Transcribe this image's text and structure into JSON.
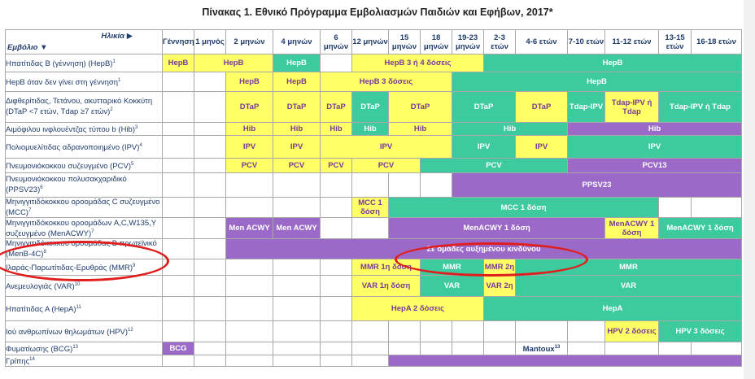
{
  "title": "Πίνακας 1. Εθνικό Πρόγραμμα Εμβολιασμών Παιδιών και Εφήβων, 2017*",
  "header": {
    "age_label": "Ηλικία ▶",
    "vaccine_label": "Εμβόλιο ▼",
    "ages": [
      "Γέννηση",
      "1 μηνός",
      "2 μηνών",
      "4 μηνών",
      "6 μηνών",
      "12 μηνών",
      "15 μηνών",
      "18 μηνών",
      "19-23 μηνών",
      "2-3 ετών",
      "4-6 ετών",
      "7-10 ετών",
      "11-12 ετών",
      "13-15 ετών",
      "16-18 ετών"
    ]
  },
  "colors": {
    "yellow": "#ffff66",
    "green": "#3cca9e",
    "purple": "#9b6ac8"
  },
  "rows": [
    {
      "name": "Ηπατίτιδας Β (γέννηση) (HepB)",
      "sup": "1",
      "h": 22,
      "cells": [
        {
          "c": "y",
          "t": "HepB"
        },
        {
          "c": "y",
          "s": 2,
          "t": "HepB"
        },
        {
          "c": "g",
          "t": "HepB"
        },
        {
          "c": "w"
        },
        {
          "c": "y",
          "s": 4,
          "t": "HepB 3 ή 4 δόσεις"
        },
        {
          "c": "g",
          "s": 6,
          "t": "HepB"
        }
      ]
    },
    {
      "name": "HepB όταν δεν γίνει στη γέννηση",
      "sup": "1",
      "h": 24,
      "cells": [
        {
          "c": "w"
        },
        {
          "c": "w"
        },
        {
          "c": "y",
          "t": "HepB"
        },
        {
          "c": "y",
          "t": "HepB"
        },
        {
          "c": "y",
          "s": 4,
          "t": "HepB 3 δόσεις"
        },
        {
          "c": "g",
          "s": 7,
          "t": "HepB"
        }
      ]
    },
    {
      "name": "Διφθερίτιδας, Τετάνου, ακυτταρικό Κοκκύτη (DTaP <7 ετών, Tdap ≥7 ετών)",
      "sup": "2",
      "h": 38,
      "cells": [
        {
          "c": "w"
        },
        {
          "c": "w"
        },
        {
          "c": "y",
          "t": "DTaP"
        },
        {
          "c": "y",
          "t": "DTaP"
        },
        {
          "c": "y",
          "t": "DTaP"
        },
        {
          "c": "g",
          "t": "DTaP"
        },
        {
          "c": "y",
          "s": 2,
          "t": "DTaP"
        },
        {
          "c": "g",
          "s": 2,
          "t": "DTaP"
        },
        {
          "c": "y",
          "t": "DTaP"
        },
        {
          "c": "g",
          "t": "Tdap-IPV"
        },
        {
          "c": "y",
          "t": "Tdap-IPV ή Tdap"
        },
        {
          "c": "g",
          "s": 2,
          "t": "Tdap-IPV ή Tdap"
        }
      ]
    },
    {
      "name": "Αιμόφιλου ινφλουέντζας τύπου b (Hib)",
      "sup": "3",
      "h": 16,
      "cells": [
        {
          "c": "w"
        },
        {
          "c": "w"
        },
        {
          "c": "y",
          "t": "Hib"
        },
        {
          "c": "y",
          "t": "Hib"
        },
        {
          "c": "y",
          "t": "Hib"
        },
        {
          "c": "g",
          "t": "Hib"
        },
        {
          "c": "y",
          "s": 2,
          "t": "Hib"
        },
        {
          "c": "g",
          "s": 3,
          "t": "Hib"
        },
        {
          "c": "p",
          "s": 4,
          "t": "Hib"
        }
      ]
    },
    {
      "name": "Πολιομυελίτιδας αδρανοποιημένο (IPV)",
      "sup": "4",
      "h": 28,
      "cells": [
        {
          "c": "w"
        },
        {
          "c": "w"
        },
        {
          "c": "y",
          "t": "IPV"
        },
        {
          "c": "y",
          "t": "IPV"
        },
        {
          "c": "y",
          "s": 4,
          "t": "IPV"
        },
        {
          "c": "g",
          "s": 2,
          "t": "IPV"
        },
        {
          "c": "y",
          "t": "IPV"
        },
        {
          "c": "g",
          "s": 4,
          "t": "IPV"
        }
      ]
    },
    {
      "name": "Πνευμονιόκοκκου συζευγμένο (PCV)",
      "sup": "5",
      "h": 18,
      "cells": [
        {
          "c": "w"
        },
        {
          "c": "w"
        },
        {
          "c": "y",
          "t": "PCV"
        },
        {
          "c": "y",
          "t": "PCV"
        },
        {
          "c": "y",
          "t": "PCV"
        },
        {
          "c": "y",
          "s": 2,
          "t": "PCV"
        },
        {
          "c": "g",
          "s": 4,
          "t": "PCV"
        },
        {
          "c": "p",
          "s": 4,
          "t": "PCV13"
        }
      ]
    },
    {
      "name": "Πνευμονιόκοκκου πολυσακχαριδικό (PPSV23)",
      "sup": "6",
      "h": 30,
      "cells": [
        {
          "c": "w"
        },
        {
          "c": "w"
        },
        {
          "c": "w"
        },
        {
          "c": "w"
        },
        {
          "c": "w"
        },
        {
          "c": "w"
        },
        {
          "c": "w"
        },
        {
          "c": "w"
        },
        {
          "c": "p",
          "s": 7,
          "t": "PPSV23"
        }
      ]
    },
    {
      "name": "Μηνιγγιτιδόκοκκου οροομάδας C συζευγμένο (MCC)",
      "sup": "7",
      "h": 24,
      "cells": [
        {
          "c": "w"
        },
        {
          "c": "w"
        },
        {
          "c": "w"
        },
        {
          "c": "w"
        },
        {
          "c": "w"
        },
        {
          "c": "y",
          "t": "MCC 1 δόση"
        },
        {
          "c": "g",
          "s": 7,
          "t": "MCC 1 δόση"
        },
        {
          "c": "w"
        },
        {
          "c": "w"
        }
      ]
    },
    {
      "name": "Μηνιγγιτιδόκοκκου οροομάδων A,C,W135,Y συζευγμένο (MenACWY)",
      "sup": "7",
      "h": 26,
      "cells": [
        {
          "c": "w"
        },
        {
          "c": "w"
        },
        {
          "c": "p",
          "t": "Men ACWY"
        },
        {
          "c": "p",
          "t": "Men ACWY"
        },
        {
          "c": "w"
        },
        {
          "c": "w"
        },
        {
          "c": "p",
          "s": 6,
          "t": "MenACWY 1 δόση"
        },
        {
          "c": "y",
          "t": "MenACWY 1 δόση"
        },
        {
          "c": "g",
          "s": 2,
          "t": "MenACWY 1 δόση"
        }
      ]
    },
    {
      "name": "Μηνιγγιτιδόκοκκου οροομάδας Β πρωτεϊνικό (MenB-4C)",
      "sup": "8",
      "h": 24,
      "cells": [
        {
          "c": "w"
        },
        {
          "c": "w"
        },
        {
          "c": "p",
          "s": 13,
          "t": "Σε ομάδες αυξημένου κινδύνου"
        }
      ]
    },
    {
      "name": "Ιλαράς-Παρωτίτιδας-Ερυθράς (MMR)",
      "sup": "9",
      "h": 20,
      "cells": [
        {
          "c": "w"
        },
        {
          "c": "w"
        },
        {
          "c": "w"
        },
        {
          "c": "w"
        },
        {
          "c": "w"
        },
        {
          "c": "y",
          "s": 2,
          "t": "MMR 1η δόση"
        },
        {
          "c": "g",
          "s": 2,
          "t": "MMR"
        },
        {
          "c": "y",
          "t": "MMR 2η"
        },
        {
          "c": "g",
          "s": 5,
          "t": "MMR"
        }
      ]
    },
    {
      "name": "Ανεμευλογιάς (VAR)",
      "sup": "10",
      "h": 26,
      "cells": [
        {
          "c": "w"
        },
        {
          "c": "w"
        },
        {
          "c": "w"
        },
        {
          "c": "w"
        },
        {
          "c": "w"
        },
        {
          "c": "y",
          "s": 2,
          "t": "VAR 1η δόση"
        },
        {
          "c": "g",
          "s": 2,
          "t": "VAR"
        },
        {
          "c": "y",
          "t": "VAR 2η"
        },
        {
          "c": "g",
          "s": 5,
          "t": "VAR"
        }
      ]
    },
    {
      "name": "Ηπατίτιδας Α (HepA)",
      "sup": "11",
      "h": 30,
      "cells": [
        {
          "c": "w"
        },
        {
          "c": "w"
        },
        {
          "c": "w"
        },
        {
          "c": "w"
        },
        {
          "c": "w"
        },
        {
          "c": "y",
          "s": 4,
          "t": "HepA 2 δόσεις"
        },
        {
          "c": "g",
          "s": 6,
          "t": "HepA"
        }
      ]
    },
    {
      "name": "Ιού ανθρωπίνων θηλωμάτων (HPV)",
      "sup": "12",
      "h": 26,
      "cells": [
        {
          "c": "w"
        },
        {
          "c": "w"
        },
        {
          "c": "w"
        },
        {
          "c": "w"
        },
        {
          "c": "w"
        },
        {
          "c": "w"
        },
        {
          "c": "w"
        },
        {
          "c": "w"
        },
        {
          "c": "w"
        },
        {
          "c": "w"
        },
        {
          "c": "w"
        },
        {
          "c": "w"
        },
        {
          "c": "y",
          "t": "HPV 2 δόσεις"
        },
        {
          "c": "g",
          "s": 2,
          "t": "HPV 3 δόσεις"
        }
      ]
    },
    {
      "name": "Φυματίωσης (BCG)",
      "sup": "13",
      "h": 16,
      "cells": [
        {
          "c": "p",
          "t": "BCG"
        },
        {
          "c": "w"
        },
        {
          "c": "w"
        },
        {
          "c": "w"
        },
        {
          "c": "w"
        },
        {
          "c": "w"
        },
        {
          "c": "w"
        },
        {
          "c": "w"
        },
        {
          "c": "w"
        },
        {
          "c": "w"
        },
        {
          "c": "w",
          "t": "Mantoux",
          "sup": "13",
          "dark": true
        },
        {
          "c": "w"
        },
        {
          "c": "w"
        },
        {
          "c": "w"
        },
        {
          "c": "w"
        }
      ]
    },
    {
      "name": "Γρίπης",
      "sup": "14",
      "h": 12,
      "cells": [
        {
          "c": "w"
        },
        {
          "c": "w"
        },
        {
          "c": "w"
        },
        {
          "c": "w"
        },
        {
          "c": "w"
        },
        {
          "c": "w"
        },
        {
          "c": "p",
          "s": 9,
          "t": ""
        }
      ]
    }
  ]
}
